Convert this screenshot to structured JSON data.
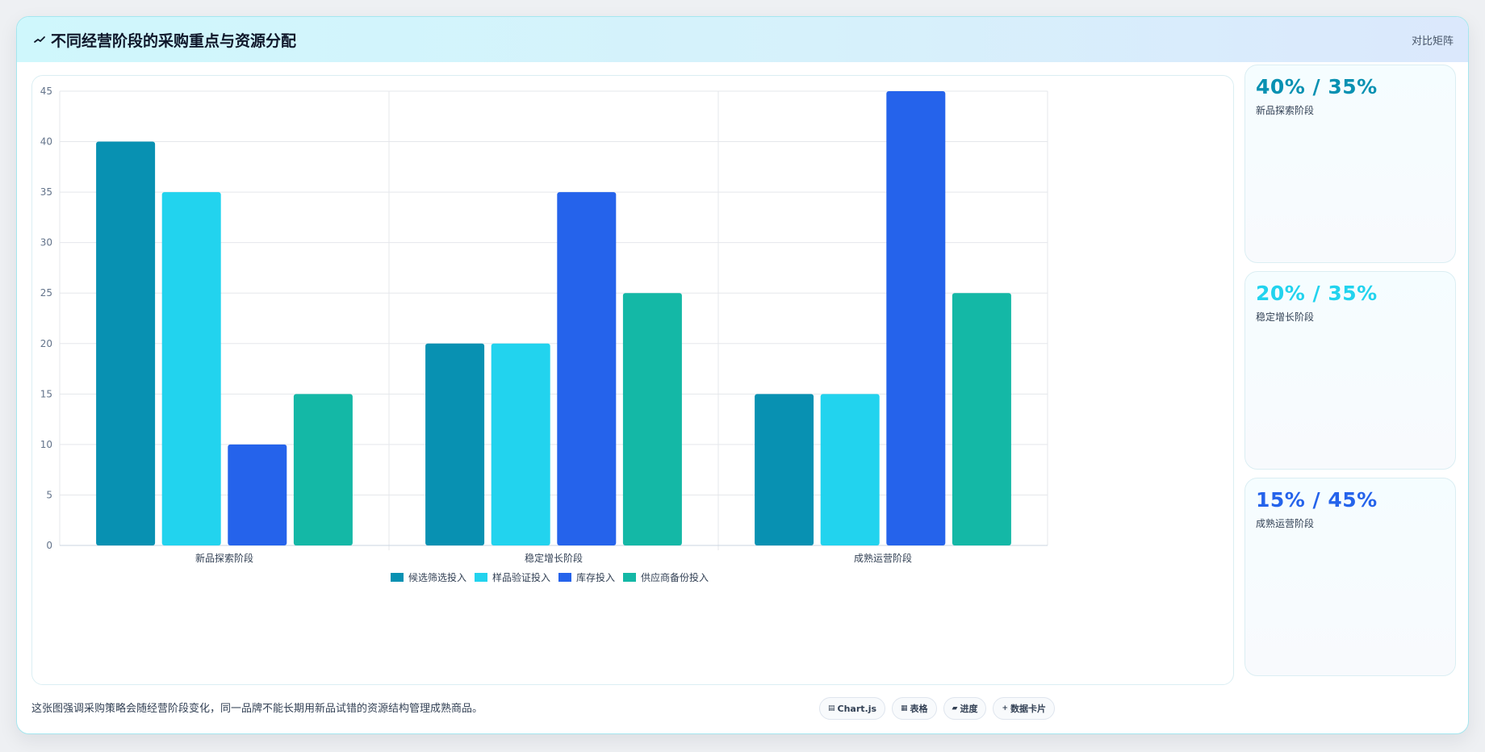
{
  "header": {
    "title": "不同经营阶段的采购重点与资源分配",
    "right_label": "对比矩阵"
  },
  "chart_data": {
    "type": "bar",
    "categories": [
      "新品探索阶段",
      "稳定增长阶段",
      "成熟运营阶段"
    ],
    "series": [
      {
        "name": "候选筛选投入",
        "color": "#0891b2",
        "values": [
          40,
          20,
          15
        ]
      },
      {
        "name": "样品验证投入",
        "color": "#22d3ee",
        "values": [
          35,
          20,
          15
        ]
      },
      {
        "name": "库存投入",
        "color": "#2563eb",
        "values": [
          10,
          35,
          45
        ]
      },
      {
        "name": "供应商备份投入",
        "color": "#14b8a6",
        "values": [
          15,
          25,
          25
        ]
      }
    ],
    "ylim": [
      0,
      45
    ],
    "yticks": [
      0,
      5,
      10,
      15,
      20,
      25,
      30,
      35,
      40,
      45
    ],
    "grid": true,
    "legend": "bottom"
  },
  "stats": [
    {
      "value": "40% / 35%",
      "label": "新品探索阶段",
      "color": "#0891b2"
    },
    {
      "value": "20% / 35%",
      "label": "稳定增长阶段",
      "color": "#22d3ee"
    },
    {
      "value": "15% / 45%",
      "label": "成熟运营阶段",
      "color": "#2563eb"
    }
  ],
  "footer": {
    "note": "这张图强调采购策略会随经营阶段变化，同一品牌不能长期用新品试错的资源结构管理成熟商品。",
    "chips": [
      {
        "icon": "▤",
        "label": "Chart.js"
      },
      {
        "icon": "▦",
        "label": "表格"
      },
      {
        "icon": "▰",
        "label": "进度"
      },
      {
        "icon": "+",
        "label": "数据卡片"
      }
    ]
  }
}
